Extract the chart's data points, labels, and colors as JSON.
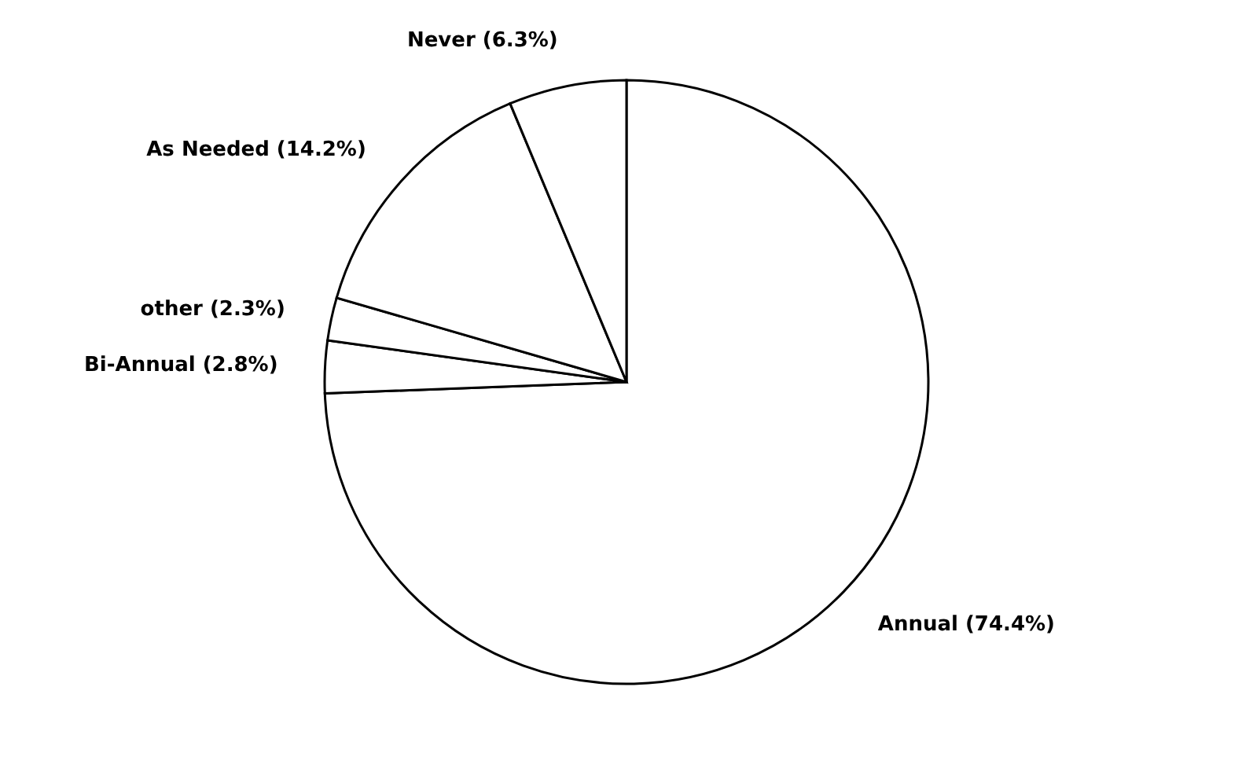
{
  "chart_data": {
    "type": "pie",
    "categories": [
      "Annual",
      "Bi-Annual",
      "other",
      "As Needed",
      "Never"
    ],
    "values": [
      74.4,
      2.8,
      2.3,
      14.2,
      6.3
    ],
    "value_labels": [
      "(74.4%)",
      "(2.8%)",
      "(2.3%)",
      "(14.2%)",
      "(6.3%)"
    ],
    "colors": [
      "#ffffff",
      "#ffffff",
      "#ffffff",
      "#ffffff",
      "#ffffff"
    ]
  }
}
